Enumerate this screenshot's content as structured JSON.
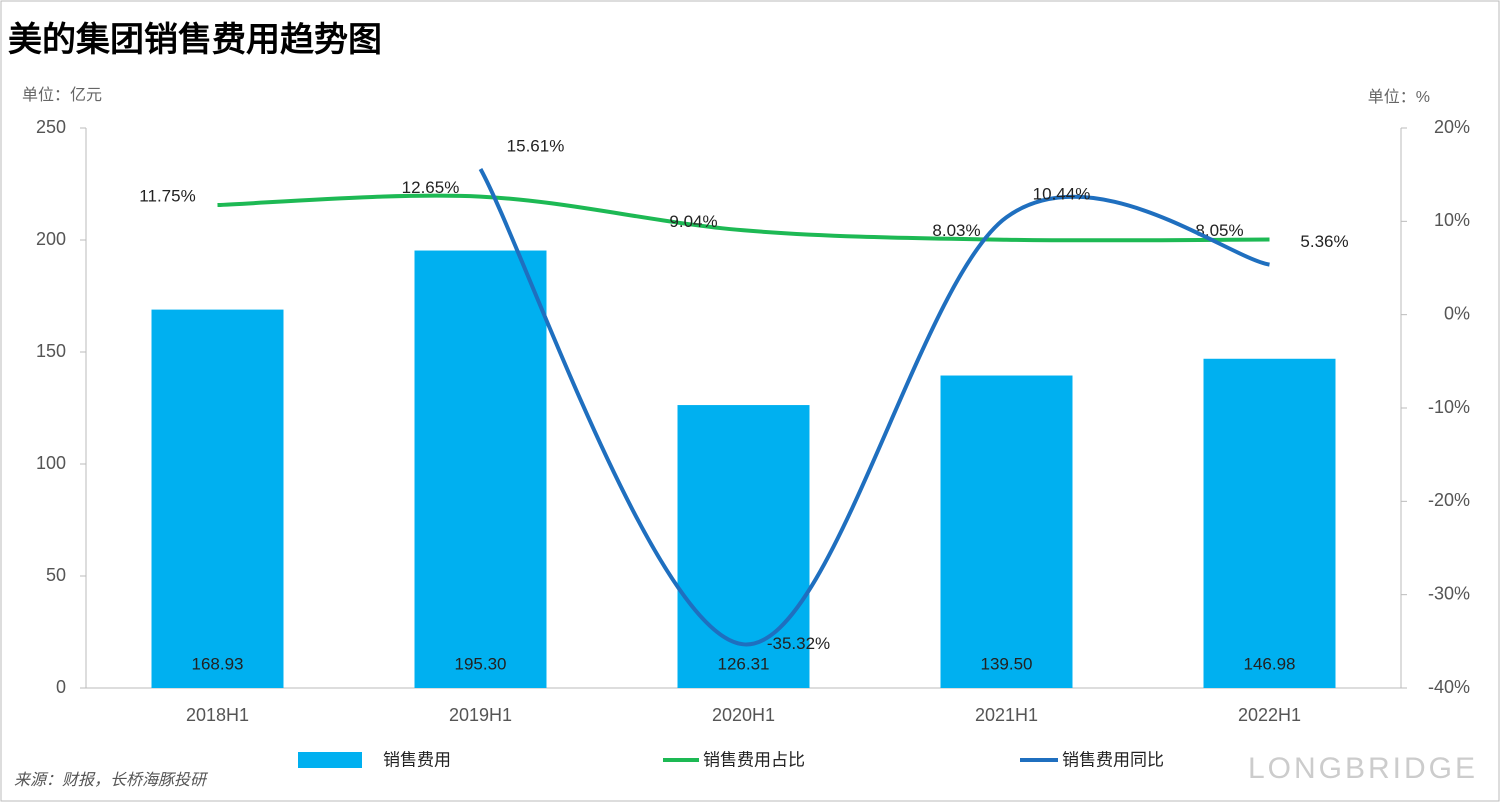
{
  "chart_data": {
    "type": "bar_line",
    "title": "美的集团销售费用趋势图",
    "y_unit": "单位：亿元",
    "y2_unit": "单位：%",
    "source": "来源：财报，长桥海豚投研",
    "watermark": "LONGBRIDGE",
    "categories": [
      "2018H1",
      "2019H1",
      "2020H1",
      "2021H1",
      "2022H1"
    ],
    "ylim": [
      0,
      250
    ],
    "yticks": [
      0,
      50,
      100,
      150,
      200,
      250
    ],
    "y2lim": [
      -40,
      20
    ],
    "y2ticks": [
      {
        "value": -40,
        "label": "-40%"
      },
      {
        "value": -30,
        "label": "-30%"
      },
      {
        "value": -20,
        "label": "-20%"
      },
      {
        "value": -10,
        "label": "-10%"
      },
      {
        "value": 0,
        "label": "0%"
      },
      {
        "value": 10,
        "label": "10%"
      },
      {
        "value": 20,
        "label": "20%"
      }
    ],
    "series": [
      {
        "name": "销售费用",
        "type": "bar",
        "color": "#00b0f0",
        "values": [
          168.93,
          195.3,
          126.31,
          139.5,
          146.98
        ],
        "value_labels": [
          "168.93",
          "195.30",
          "126.31",
          "139.50",
          "146.98"
        ]
      },
      {
        "name": "销售费用占比",
        "type": "line",
        "axis": "y2",
        "color": "#1db954",
        "values": [
          11.75,
          12.65,
          9.04,
          8.03,
          8.05
        ],
        "value_labels": [
          "11.75%",
          "12.65%",
          "9.04%",
          "8.03%",
          "8.05%"
        ]
      },
      {
        "name": "销售费用同比",
        "type": "line",
        "axis": "y2",
        "color": "#1f6fbf",
        "values": [
          null,
          15.61,
          -35.32,
          10.44,
          5.36
        ],
        "value_labels": [
          null,
          "15.61%",
          "-35.32%",
          "10.44%",
          "5.36%"
        ]
      }
    ]
  }
}
